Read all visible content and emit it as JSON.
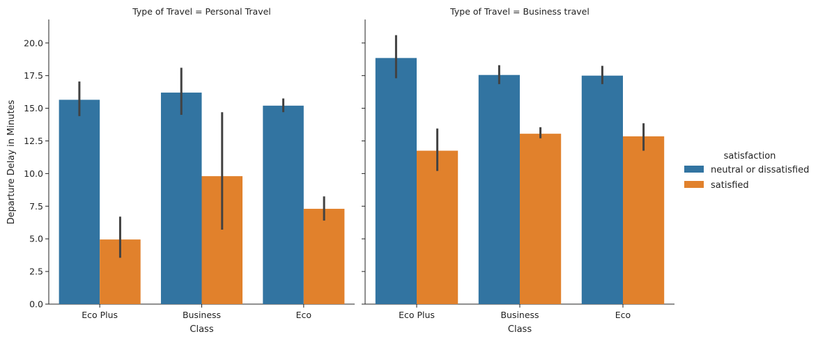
{
  "chart_data": {
    "type": "bar",
    "ylabel": "Departure Delay in Minutes",
    "xlabel": "Class",
    "ylim": [
      0,
      21.8
    ],
    "yticks": [
      "0.0",
      "2.5",
      "5.0",
      "7.5",
      "10.0",
      "12.5",
      "15.0",
      "17.5",
      "20.0"
    ],
    "ytick_values": [
      0,
      2.5,
      5,
      7.5,
      10,
      12.5,
      15,
      17.5,
      20
    ],
    "legend": {
      "title": "satisfaction",
      "placement": "right",
      "entries": [
        "neutral or dissatisfied",
        "satisfied"
      ]
    },
    "colors": {
      "neutral or dissatisfied": "#3274a1",
      "satisfied": "#e1812c",
      "errorbar": "#424242"
    },
    "panels": [
      {
        "title": "Type of Travel = Personal Travel",
        "categories": [
          "Eco Plus",
          "Business",
          "Eco"
        ],
        "series": [
          {
            "name": "neutral or dissatisfied",
            "values": [
              15.65,
              16.2,
              15.2
            ],
            "ci_low": [
              14.4,
              14.5,
              14.7
            ],
            "ci_high": [
              17.05,
              18.1,
              15.75
            ]
          },
          {
            "name": "satisfied",
            "values": [
              4.95,
              9.8,
              7.3
            ],
            "ci_low": [
              3.55,
              5.7,
              6.4
            ],
            "ci_high": [
              6.7,
              14.7,
              8.25
            ]
          }
        ]
      },
      {
        "title": "Type of Travel = Business travel",
        "categories": [
          "Eco Plus",
          "Business",
          "Eco"
        ],
        "series": [
          {
            "name": "neutral or dissatisfied",
            "values": [
              18.85,
              17.55,
              17.5
            ],
            "ci_low": [
              17.3,
              16.85,
              16.85
            ],
            "ci_high": [
              20.6,
              18.3,
              18.25
            ]
          },
          {
            "name": "satisfied",
            "values": [
              11.75,
              13.05,
              12.85
            ],
            "ci_low": [
              10.2,
              12.7,
              11.75
            ],
            "ci_high": [
              13.45,
              13.55,
              13.85
            ]
          }
        ]
      }
    ]
  }
}
